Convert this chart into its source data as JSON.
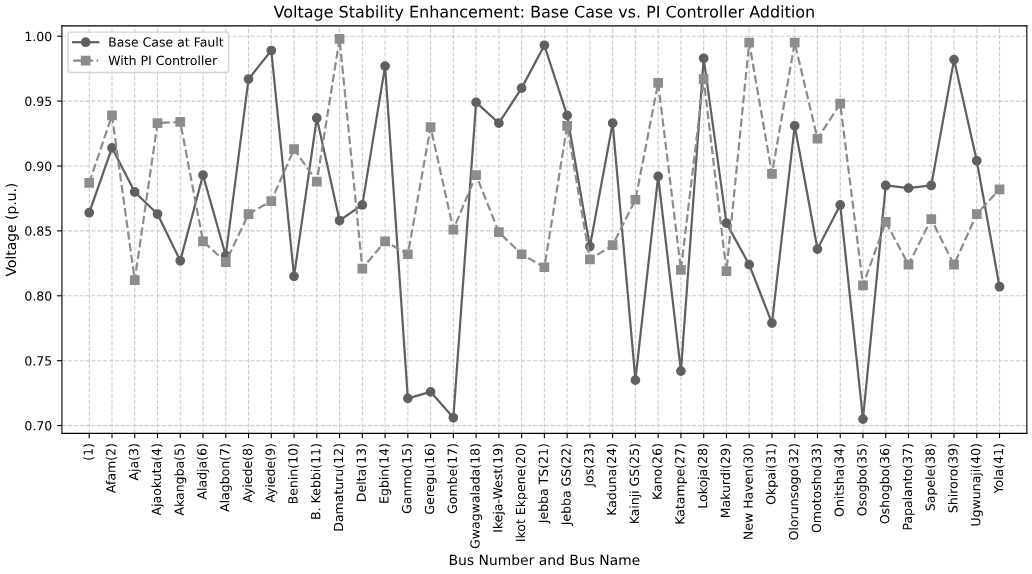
{
  "chart_data": {
    "type": "line",
    "title": "Voltage Stability Enhancement: Base Case vs. PI Controller Addition",
    "xlabel": "Bus Number and Bus Name",
    "ylabel": "Voltage (p.u.)",
    "categories": [
      "(1)",
      "Afam(2)",
      "Aja(3)",
      "Ajaokuta(4)",
      "Akangba(5)",
      "Aladja(6)",
      "Alagbon(7)",
      "Ayiede(8)",
      "Ayiede(9)",
      "Benin(10)",
      "B. Kebbi(11)",
      "Damaturu(12)",
      "Delta(13)",
      "Egbin(14)",
      "Ganmo(15)",
      "Geregu(16)",
      "Gombe(17)",
      "Gwagwalada(18)",
      "Ikeja-West(19)",
      "Ikot Ekpene(20)",
      "Jebba TS(21)",
      "Jebba GS(22)",
      "Jos(23)",
      "Kaduna(24)",
      "Kainji GS(25)",
      "Kano(26)",
      "Katampe(27)",
      "Lokoja(28)",
      "Makurdi(29)",
      "New Haven(30)",
      "Okpai(31)",
      "Olorunsogo(32)",
      "Omotosho(33)",
      "Onitsha(34)",
      "Osogbo(35)",
      "Oshogbo(36)",
      "Papalanto(37)",
      "Sapele(38)",
      "Shiroro(39)",
      "Ugwunaji(40)",
      "Yola(41)"
    ],
    "series": [
      {
        "name": "Base Case at Fault",
        "color": "#606060",
        "marker": "circle",
        "line_style": "solid",
        "values": [
          0.864,
          0.914,
          0.88,
          0.863,
          0.827,
          0.893,
          0.831,
          0.967,
          0.989,
          0.815,
          0.937,
          0.858,
          0.87,
          0.977,
          0.721,
          0.726,
          0.706,
          0.949,
          0.933,
          0.96,
          0.993,
          0.939,
          0.838,
          0.933,
          0.735,
          0.892,
          0.742,
          0.983,
          0.856,
          0.824,
          0.779,
          0.931,
          0.836,
          0.87,
          0.705,
          0.885,
          0.883,
          0.885,
          0.982,
          0.904,
          0.807
        ]
      },
      {
        "name": "With PI Controller",
        "color": "#8c8c8c",
        "marker": "square",
        "line_style": "dashed",
        "values": [
          0.887,
          0.939,
          0.812,
          0.933,
          0.934,
          0.842,
          0.826,
          0.863,
          0.873,
          0.913,
          0.888,
          0.998,
          0.821,
          0.842,
          0.832,
          0.93,
          0.851,
          0.893,
          0.849,
          0.832,
          0.822,
          0.931,
          0.828,
          0.839,
          0.874,
          0.964,
          0.82,
          0.967,
          0.819,
          0.995,
          0.894,
          0.995,
          0.921,
          0.948,
          0.808,
          0.857,
          0.824,
          0.859,
          0.824,
          0.863,
          0.882
        ]
      }
    ],
    "ylim": [
      0.694,
      1.008
    ],
    "yticks": [
      {
        "value": 0.7,
        "label": "0.70"
      },
      {
        "value": 0.75,
        "label": "0.75"
      },
      {
        "value": 0.8,
        "label": "0.80"
      },
      {
        "value": 0.85,
        "label": "0.85"
      },
      {
        "value": 0.9,
        "label": "0.90"
      },
      {
        "value": 0.95,
        "label": "0.95"
      },
      {
        "value": 1.0,
        "label": "1.00"
      }
    ],
    "grid": true,
    "legend": "top left"
  }
}
